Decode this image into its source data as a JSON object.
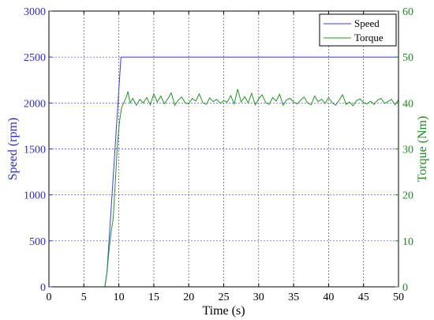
{
  "chart_data": {
    "type": "line",
    "xlabel": "Time (s)",
    "ylabel_left": "Speed (rpm)",
    "ylabel_right": "Torque (Nm)",
    "xlim": [
      0,
      50
    ],
    "ylim_left": [
      0,
      3000
    ],
    "ylim_right": [
      0,
      60
    ],
    "xticks": [
      0,
      5,
      10,
      15,
      20,
      25,
      30,
      35,
      40,
      45,
      50
    ],
    "yticks_left": [
      0,
      500,
      1000,
      1500,
      2000,
      2500,
      3000
    ],
    "yticks_right": [
      0,
      10,
      20,
      30,
      40,
      50,
      60
    ],
    "grid": true,
    "legend_position": "top-right",
    "colors": {
      "speed": "#3a3aff",
      "torque": "#1f9a1f",
      "left_axis": "#2b2bd6",
      "right_axis": "#1f8a1f",
      "grid": "#3a3aff"
    },
    "series": [
      {
        "name": "Speed",
        "axis": "left",
        "x": [
          0,
          8,
          8.3,
          9.2,
          10.3,
          10.5,
          50
        ],
        "y": [
          0,
          0,
          150,
          1200,
          2500,
          2500,
          2500
        ]
      },
      {
        "name": "Torque",
        "axis": "right",
        "x": [
          0,
          8.0,
          8.3,
          8.6,
          8.9,
          9.2,
          9.5,
          9.8,
          10.1,
          10.4,
          10.7,
          11.0,
          11.3,
          11.6,
          12.0,
          12.5,
          13.0,
          13.5,
          14.0,
          14.5,
          15.0,
          15.5,
          16.0,
          16.5,
          17.0,
          17.5,
          18.0,
          18.5,
          19.0,
          19.5,
          20.0,
          20.5,
          21.0,
          21.5,
          22.0,
          22.5,
          23.0,
          23.5,
          24.0,
          24.5,
          25.0,
          25.5,
          26.0,
          26.5,
          27.0,
          27.5,
          28.0,
          28.5,
          29.0,
          29.5,
          30.0,
          30.5,
          31.0,
          31.5,
          32.0,
          32.5,
          33.0,
          33.5,
          34.0,
          34.5,
          35.0,
          35.5,
          36.0,
          36.5,
          37.0,
          37.5,
          38.0,
          38.5,
          39.0,
          39.5,
          40.0,
          40.5,
          41.0,
          41.5,
          42.0,
          42.5,
          43.0,
          43.5,
          44.0,
          44.5,
          45.0,
          45.5,
          46.0,
          46.5,
          47.0,
          47.5,
          48.0,
          48.5,
          49.0,
          49.5,
          50.0
        ],
        "y": [
          0,
          0,
          3,
          8,
          12,
          15,
          23,
          31,
          36,
          39,
          40,
          41,
          42.5,
          40,
          41,
          39.5,
          40.8,
          40,
          41.2,
          39.6,
          42,
          40.2,
          41.5,
          39.8,
          40.9,
          42.2,
          39.5,
          40.6,
          41.3,
          40,
          39.8,
          41,
          40.4,
          42,
          40.1,
          39.7,
          41.1,
          40.3,
          40.8,
          39.9,
          40.5,
          40.2,
          41.6,
          39.8,
          43,
          40.2,
          41.4,
          40,
          42.1,
          39.6,
          40.9,
          41.8,
          40.1,
          39.7,
          41.2,
          40.4,
          41.9,
          39.5,
          40.7,
          41,
          40.2,
          39.8,
          40.6,
          41.3,
          40,
          39.6,
          41.5,
          40.3,
          40.8,
          39.9,
          41.2,
          40.1,
          39.5,
          40.6,
          41.8,
          39.7,
          40.2,
          39.4,
          40.5,
          40.9,
          40.1,
          39.8,
          40.4,
          39.7,
          40.6,
          41,
          39.9,
          40.3,
          40.8,
          39.6,
          40.7
        ]
      }
    ]
  }
}
